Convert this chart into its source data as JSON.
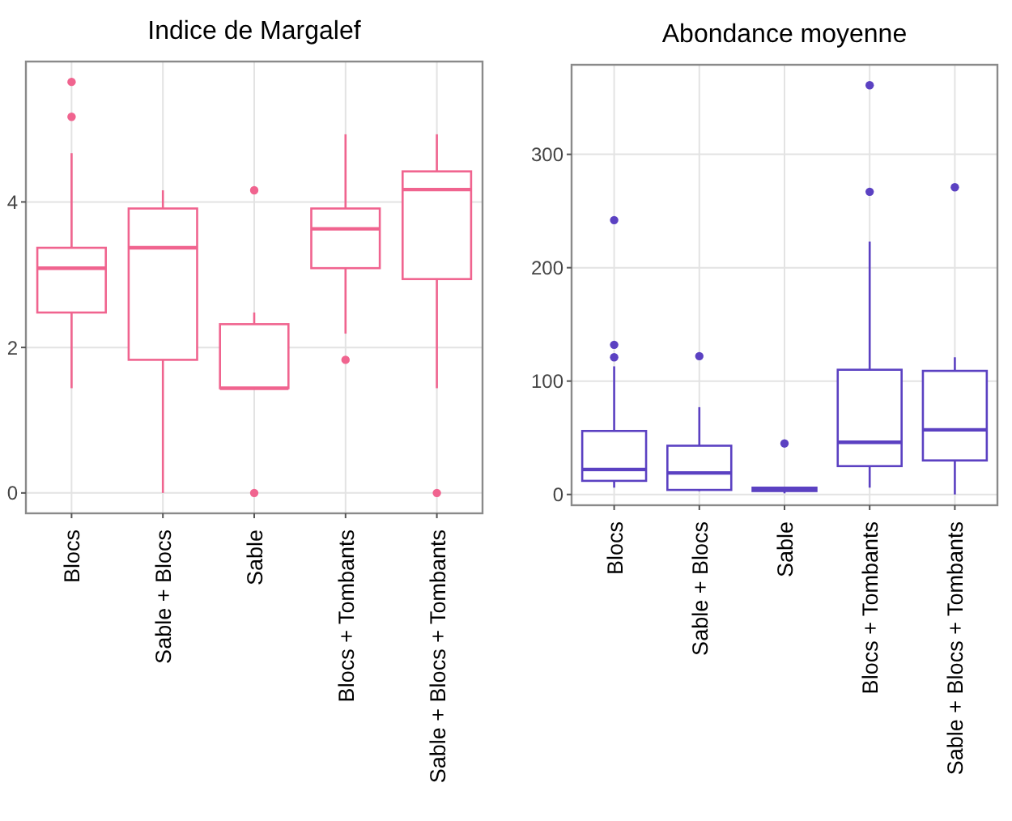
{
  "chart_data": [
    {
      "type": "box",
      "title": "Indice de Margalef",
      "categories": [
        "Blocs",
        "Sable + Blocs",
        "Sable",
        "Blocs + Tombants",
        "Sable + Blocs + Tombants"
      ],
      "color": "#f0648f",
      "ylim": [
        -0.28,
        5.93
      ],
      "yticks": [
        0,
        2,
        4
      ],
      "grid": true,
      "boxes": [
        {
          "low": 1.44,
          "q1": 2.48,
          "median": 3.09,
          "q3": 3.37,
          "high": 4.67,
          "outliers": [
            5.65,
            5.17
          ]
        },
        {
          "low": 0,
          "q1": 1.83,
          "median": 3.37,
          "q3": 3.91,
          "high": 4.16
        },
        {
          "low": 1.44,
          "q1": 1.44,
          "median": 1.44,
          "q3": 2.32,
          "high": 2.48,
          "outliers": [
            4.16,
            0
          ]
        },
        {
          "low": 2.19,
          "q1": 3.09,
          "median": 3.63,
          "q3": 3.91,
          "high": 4.93,
          "outliers": [
            1.83
          ]
        },
        {
          "low": 1.44,
          "q1": 2.94,
          "median": 4.17,
          "q3": 4.42,
          "high": 4.93,
          "outliers": [
            0
          ]
        }
      ]
    },
    {
      "type": "box",
      "title": "Abondance moyenne",
      "categories": [
        "Blocs",
        "Sable + Blocs",
        "Sable",
        "Blocs + Tombants",
        "Sable + Blocs + Tombants"
      ],
      "color": "#5b41c2",
      "ylim": [
        -9.5,
        379
      ],
      "yticks": [
        0,
        100,
        200,
        300
      ],
      "grid": true,
      "boxes": [
        {
          "low": 6,
          "q1": 12,
          "median": 22,
          "q3": 56,
          "high": 113,
          "outliers": [
            132,
            121,
            242
          ]
        },
        {
          "low": 3,
          "q1": 4,
          "median": 19,
          "q3": 43,
          "high": 77,
          "outliers": [
            122
          ]
        },
        {
          "low": 1,
          "q1": 3,
          "median": 5,
          "q3": 6,
          "high": 6,
          "outliers": [
            45
          ]
        },
        {
          "low": 6,
          "q1": 25,
          "median": 46,
          "q3": 110,
          "high": 223,
          "outliers": [
            361,
            267
          ]
        },
        {
          "low": 0,
          "q1": 30,
          "median": 57,
          "q3": 109,
          "high": 121,
          "outliers": [
            271
          ]
        }
      ]
    }
  ]
}
